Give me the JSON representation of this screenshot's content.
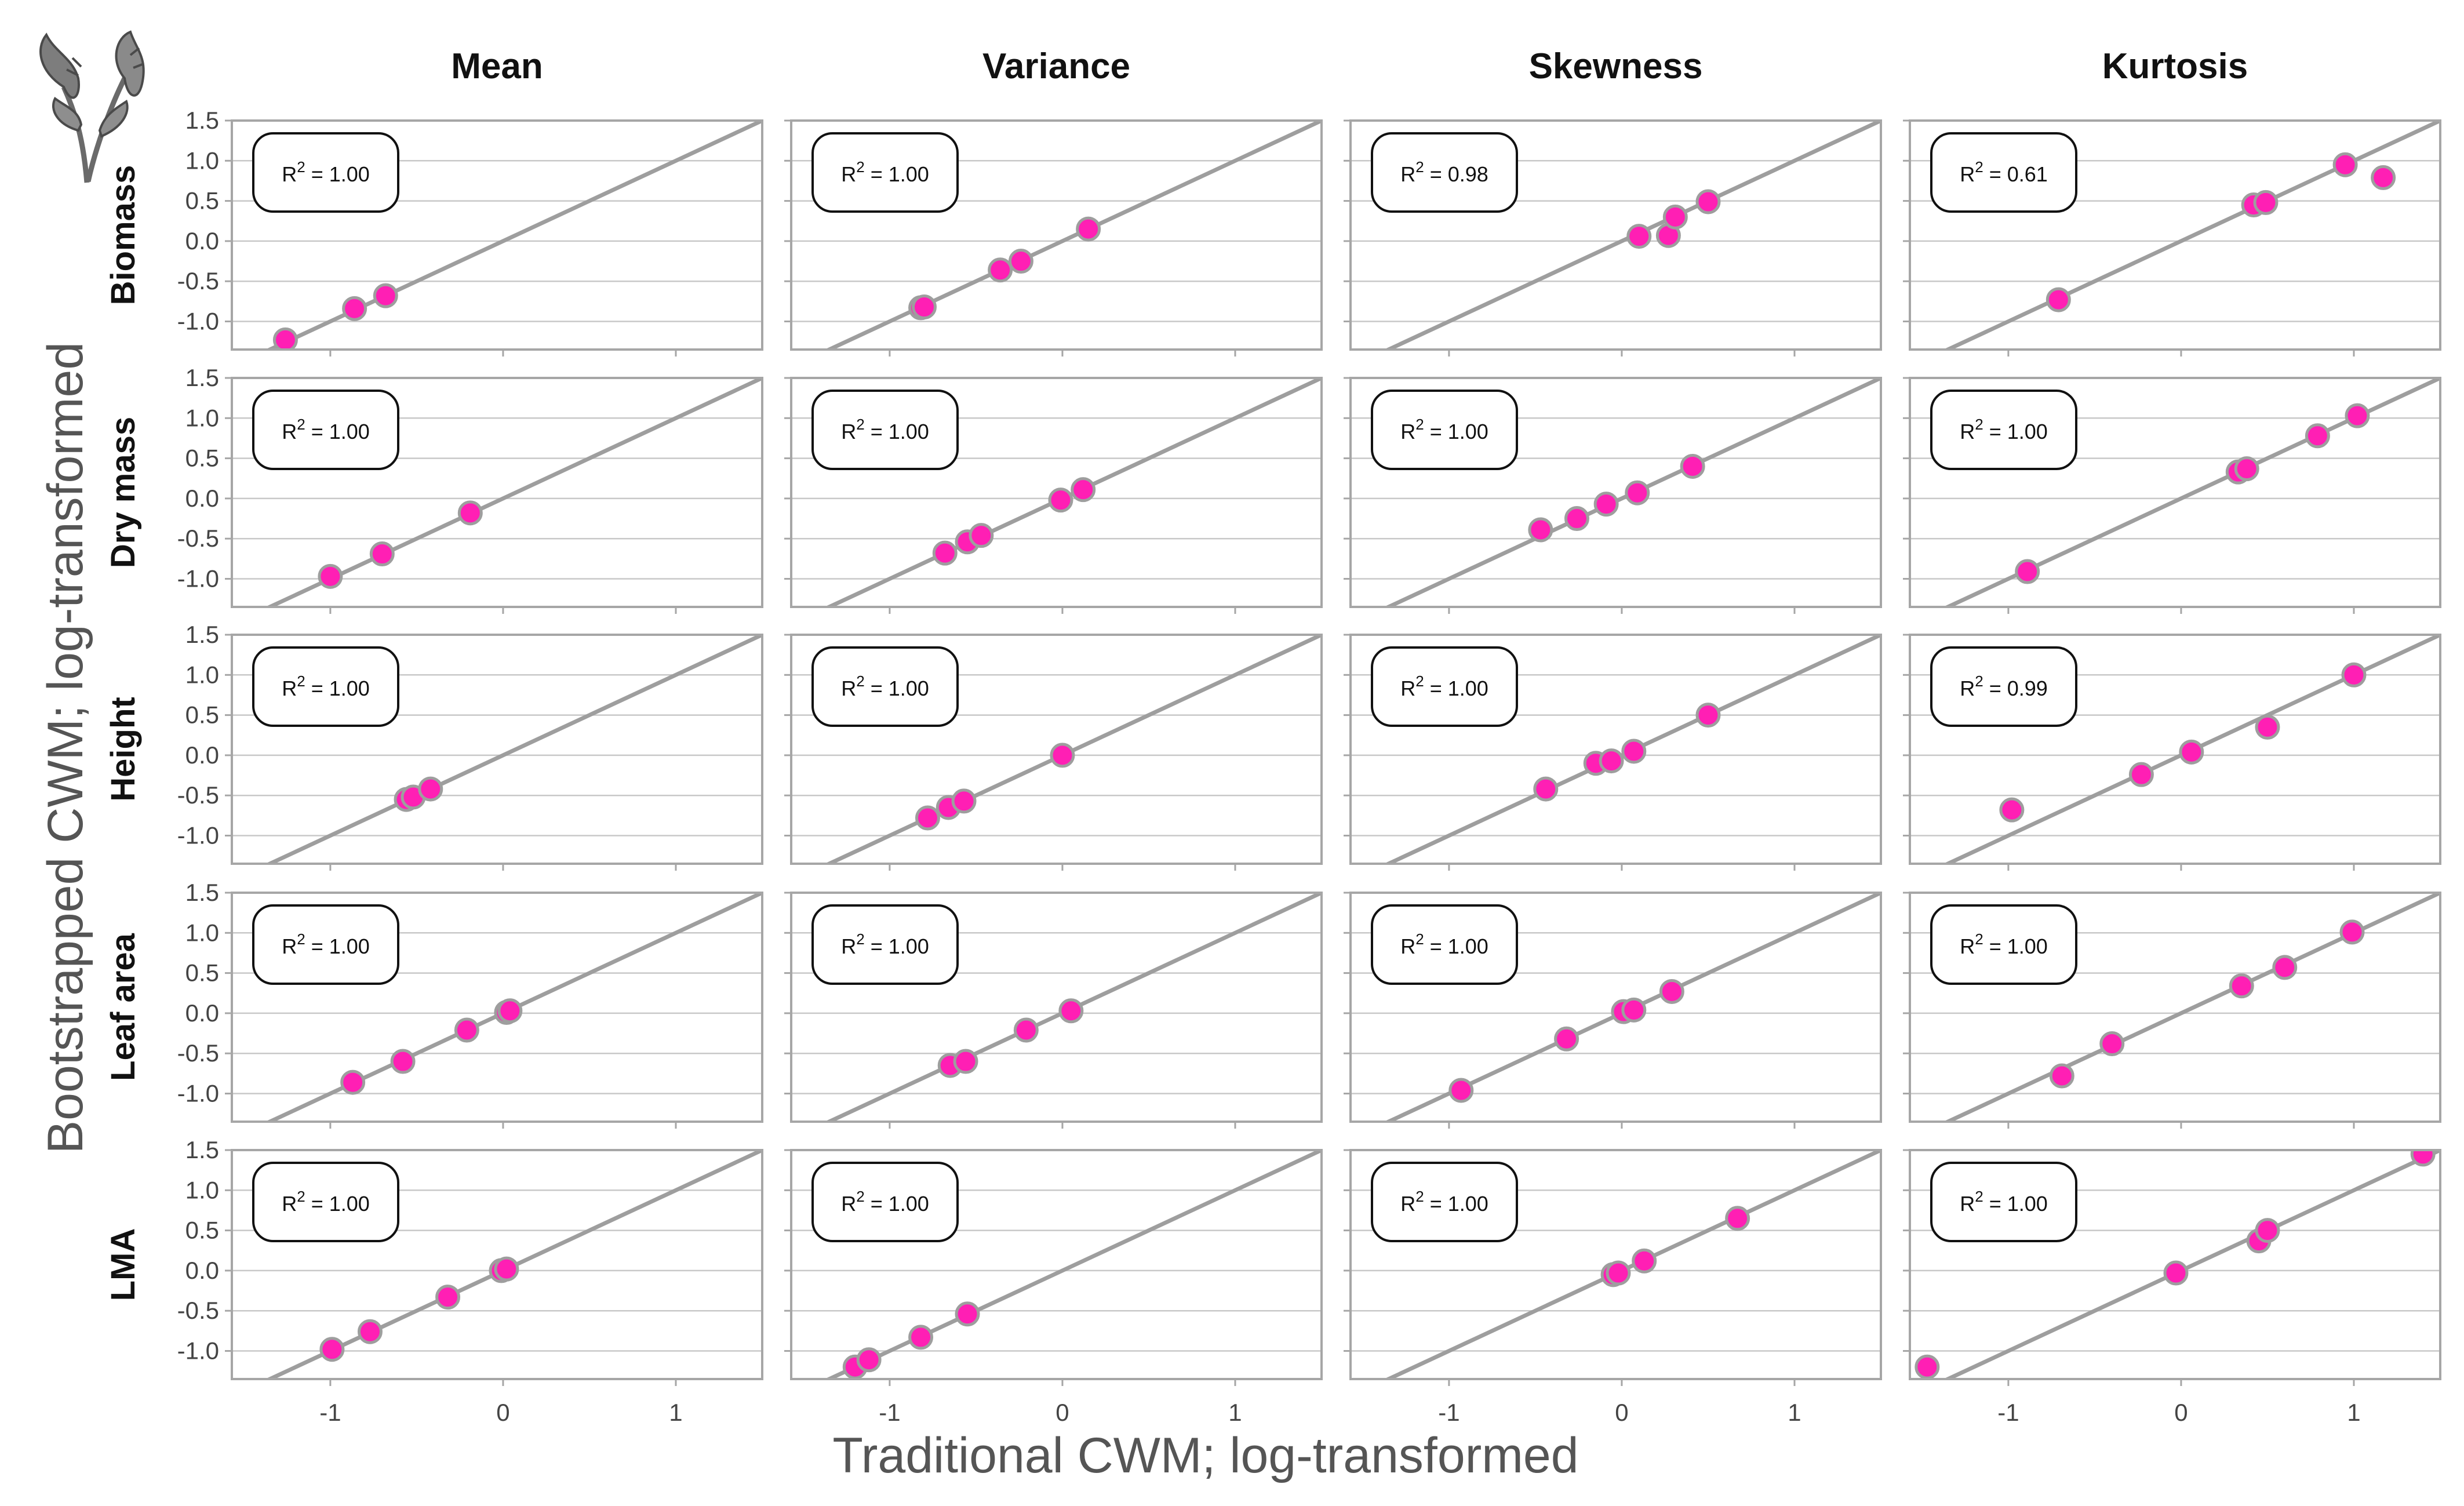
{
  "figure": {
    "x_axis_title": "Traditional CWM; log-transformed",
    "y_axis_title": "Bootstrapped CWM; log-transformed",
    "logo_icon": "plant-sprig-icon"
  },
  "columns": [
    "Mean",
    "Variance",
    "Skewness",
    "Kurtosis"
  ],
  "rows": [
    "Biomass",
    "Dry mass",
    "Height",
    "Leaf area",
    "LMA"
  ],
  "colors": {
    "point_fill": "#ff1fb4",
    "point_stroke": "#9e9e9e",
    "line": "#9e9e9e",
    "panel_border": "#a6a6a6",
    "gridline": "#c8c8c8",
    "axis_text": "#444444"
  },
  "chart_data": {
    "type": "scatter",
    "layout": "faceted grid: rows = trait, columns = moment",
    "x_ticks": [
      -1,
      0,
      1
    ],
    "y_ticks": [
      1.5,
      1.0,
      0.5,
      0.0,
      -0.5,
      -1.0
    ],
    "y_tick_labels": [
      "1.5",
      "1.0",
      "0.5",
      "0.0",
      "-0.5",
      "-1.0"
    ],
    "xlim": [
      -1.57,
      1.5
    ],
    "ylim": [
      -1.35,
      1.5
    ],
    "reference_line": "1:1 line (y = x)",
    "grid": "horizontal only",
    "panels": [
      {
        "row": "Biomass",
        "column": "Mean",
        "r2": "1.00",
        "points": [
          [
            -1.26,
            -1.23
          ],
          [
            -0.86,
            -0.84
          ],
          [
            -0.68,
            -0.68
          ]
        ]
      },
      {
        "row": "Biomass",
        "column": "Variance",
        "r2": "1.00",
        "points": [
          [
            -0.82,
            -0.83
          ],
          [
            -0.8,
            -0.82
          ],
          [
            -0.36,
            -0.36
          ],
          [
            -0.24,
            -0.25
          ],
          [
            0.15,
            0.15
          ]
        ]
      },
      {
        "row": "Biomass",
        "column": "Skewness",
        "r2": "0.98",
        "points": [
          [
            0.1,
            0.06
          ],
          [
            0.27,
            0.07
          ],
          [
            0.31,
            0.3
          ],
          [
            0.5,
            0.49
          ]
        ]
      },
      {
        "row": "Biomass",
        "column": "Kurtosis",
        "r2": "0.61",
        "points": [
          [
            -0.71,
            -0.73
          ],
          [
            0.42,
            0.45
          ],
          [
            0.49,
            0.48
          ],
          [
            0.95,
            0.95
          ],
          [
            1.17,
            0.79
          ]
        ]
      },
      {
        "row": "Dry mass",
        "column": "Mean",
        "r2": "1.00",
        "points": [
          [
            -1.0,
            -0.97
          ],
          [
            -0.7,
            -0.69
          ],
          [
            -0.19,
            -0.18
          ]
        ]
      },
      {
        "row": "Dry mass",
        "column": "Variance",
        "r2": "1.00",
        "points": [
          [
            -0.68,
            -0.68
          ],
          [
            -0.55,
            -0.54
          ],
          [
            -0.47,
            -0.46
          ],
          [
            -0.01,
            -0.02
          ],
          [
            0.12,
            0.11
          ]
        ]
      },
      {
        "row": "Dry mass",
        "column": "Skewness",
        "r2": "1.00",
        "points": [
          [
            -0.47,
            -0.39
          ],
          [
            -0.26,
            -0.25
          ],
          [
            -0.09,
            -0.07
          ],
          [
            0.09,
            0.07
          ],
          [
            0.41,
            0.4
          ]
        ]
      },
      {
        "row": "Dry mass",
        "column": "Kurtosis",
        "r2": "1.00",
        "points": [
          [
            -0.89,
            -0.91
          ],
          [
            0.33,
            0.33
          ],
          [
            0.38,
            0.37
          ],
          [
            0.79,
            0.78
          ],
          [
            1.02,
            1.03
          ]
        ]
      },
      {
        "row": "Height",
        "column": "Mean",
        "r2": "1.00",
        "points": [
          [
            -0.56,
            -0.55
          ],
          [
            -0.52,
            -0.52
          ],
          [
            -0.42,
            -0.42
          ]
        ]
      },
      {
        "row": "Height",
        "column": "Variance",
        "r2": "1.00",
        "points": [
          [
            -0.78,
            -0.78
          ],
          [
            -0.66,
            -0.65
          ],
          [
            -0.57,
            -0.57
          ],
          [
            0.0,
            0.0
          ]
        ]
      },
      {
        "row": "Height",
        "column": "Skewness",
        "r2": "1.00",
        "points": [
          [
            -0.44,
            -0.42
          ],
          [
            -0.15,
            -0.1
          ],
          [
            -0.06,
            -0.07
          ],
          [
            0.07,
            0.05
          ],
          [
            0.5,
            0.5
          ]
        ]
      },
      {
        "row": "Height",
        "column": "Kurtosis",
        "r2": "0.99",
        "points": [
          [
            -0.98,
            -0.68
          ],
          [
            -0.23,
            -0.24
          ],
          [
            0.06,
            0.04
          ],
          [
            0.5,
            0.35
          ],
          [
            1.0,
            1.0
          ]
        ]
      },
      {
        "row": "Leaf area",
        "column": "Mean",
        "r2": "1.00",
        "points": [
          [
            -0.87,
            -0.86
          ],
          [
            -0.58,
            -0.6
          ],
          [
            -0.21,
            -0.21
          ],
          [
            0.02,
            0.01
          ],
          [
            0.04,
            0.03
          ]
        ]
      },
      {
        "row": "Leaf area",
        "column": "Variance",
        "r2": "1.00",
        "points": [
          [
            -0.65,
            -0.65
          ],
          [
            -0.56,
            -0.6
          ],
          [
            -0.21,
            -0.21
          ],
          [
            0.05,
            0.03
          ]
        ]
      },
      {
        "row": "Leaf area",
        "column": "Skewness",
        "r2": "1.00",
        "points": [
          [
            -0.93,
            -0.96
          ],
          [
            -0.32,
            -0.32
          ],
          [
            0.01,
            0.02
          ],
          [
            0.07,
            0.04
          ],
          [
            0.29,
            0.27
          ]
        ]
      },
      {
        "row": "Leaf area",
        "column": "Kurtosis",
        "r2": "1.00",
        "points": [
          [
            -0.69,
            -0.78
          ],
          [
            -0.4,
            -0.38
          ],
          [
            0.35,
            0.34
          ],
          [
            0.6,
            0.57
          ],
          [
            0.99,
            1.01
          ]
        ]
      },
      {
        "row": "LMA",
        "column": "Mean",
        "r2": "1.00",
        "points": [
          [
            -0.99,
            -0.98
          ],
          [
            -0.77,
            -0.76
          ],
          [
            -0.32,
            -0.33
          ],
          [
            -0.01,
            0.0
          ],
          [
            0.02,
            0.02
          ]
        ]
      },
      {
        "row": "LMA",
        "column": "Variance",
        "r2": "1.00",
        "points": [
          [
            -1.2,
            -1.2
          ],
          [
            -1.12,
            -1.11
          ],
          [
            -0.82,
            -0.83
          ],
          [
            -0.55,
            -0.54
          ]
        ]
      },
      {
        "row": "LMA",
        "column": "Skewness",
        "r2": "1.00",
        "points": [
          [
            -0.05,
            -0.05
          ],
          [
            -0.02,
            -0.03
          ],
          [
            0.13,
            0.12
          ],
          [
            0.67,
            0.65
          ]
        ]
      },
      {
        "row": "LMA",
        "column": "Kurtosis",
        "r2": "1.00",
        "points": [
          [
            -1.47,
            -1.2
          ],
          [
            -0.03,
            -0.03
          ],
          [
            0.45,
            0.37
          ],
          [
            0.5,
            0.5
          ],
          [
            1.4,
            1.45
          ]
        ]
      }
    ]
  }
}
